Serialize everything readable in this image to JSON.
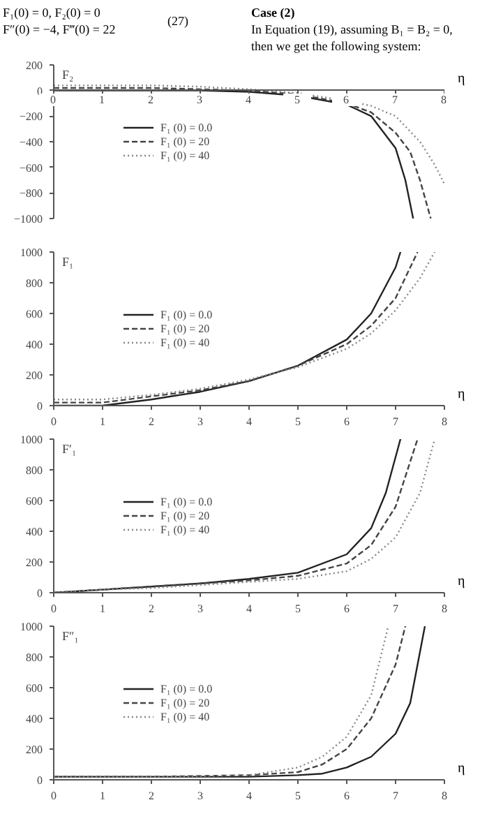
{
  "chart_data": [
    {
      "type": "line",
      "ylabel": "F₂",
      "xlabel": "η",
      "annotations": [
        "F₁(0) = 0, F₂(0) = 0",
        "F″(0) = −4, F‴(0) = 22",
        "(27)",
        "Case (2)",
        "In Equation (19), assuming B₁ = B₂ = 0, then we get the following system:"
      ],
      "xlim": [
        0,
        8
      ],
      "xticks": [
        0,
        1,
        2,
        3,
        4,
        5,
        6,
        7,
        8
      ],
      "ylim": [
        -1000,
        200
      ],
      "yticks": [
        -1000,
        -800,
        -600,
        -400,
        -200,
        0,
        200
      ],
      "grid": false,
      "legend": "center left",
      "series": [
        {
          "name": "F₁ (0) = 0.0",
          "color": "#222222",
          "line_style": "solid",
          "x": [
            0,
            1,
            2,
            3,
            4,
            5,
            6,
            6.5,
            7,
            7.2,
            7.36
          ],
          "values": [
            0,
            0,
            0,
            0,
            -10,
            -40,
            -110,
            -200,
            -450,
            -700,
            -1000
          ]
        },
        {
          "name": "F₁ (0) = 20",
          "color": "#444444",
          "line_style": "dashed",
          "x": [
            0,
            1,
            2,
            3,
            4,
            5,
            6,
            6.5,
            7,
            7.3,
            7.5,
            7.72
          ],
          "values": [
            20,
            20,
            20,
            10,
            0,
            -30,
            -100,
            -170,
            -330,
            -480,
            -700,
            -1000
          ]
        },
        {
          "name": "F₁ (0) = 40",
          "color": "#888888",
          "line_style": "dotted",
          "x": [
            0,
            1,
            2,
            3,
            4,
            5,
            6,
            6.5,
            7,
            7.5,
            7.8,
            8
          ],
          "values": [
            40,
            40,
            40,
            30,
            10,
            -20,
            -80,
            -120,
            -200,
            -400,
            -580,
            -730
          ]
        }
      ]
    },
    {
      "type": "line",
      "ylabel": "F₁",
      "xlabel": "η",
      "xlim": [
        0,
        8
      ],
      "xticks": [
        0,
        1,
        2,
        3,
        4,
        5,
        6,
        7,
        8
      ],
      "ylim": [
        0,
        1000
      ],
      "yticks": [
        0,
        200,
        400,
        600,
        800,
        1000
      ],
      "grid": false,
      "legend": "center left",
      "series": [
        {
          "name": "F₁ (0) = 0.0",
          "color": "#222222",
          "line_style": "solid",
          "x": [
            0,
            1,
            2,
            3,
            4,
            5,
            6,
            6.5,
            7,
            7.1
          ],
          "values": [
            0,
            0,
            40,
            90,
            160,
            260,
            430,
            600,
            900,
            1000
          ]
        },
        {
          "name": "F₁ (0) = 20",
          "color": "#444444",
          "line_style": "dashed",
          "x": [
            0,
            1,
            2,
            3,
            4,
            5,
            6,
            6.5,
            7,
            7.45
          ],
          "values": [
            20,
            20,
            60,
            100,
            160,
            260,
            400,
            520,
            700,
            1000
          ]
        },
        {
          "name": "F₁ (0) = 40",
          "color": "#888888",
          "line_style": "dotted",
          "x": [
            0,
            1,
            2,
            3,
            4,
            5,
            6,
            6.5,
            7,
            7.5,
            7.8
          ],
          "values": [
            40,
            40,
            70,
            110,
            170,
            250,
            370,
            470,
            620,
            830,
            1000
          ]
        }
      ]
    },
    {
      "type": "line",
      "ylabel": "F′₁",
      "xlabel": "η",
      "xlim": [
        0,
        8
      ],
      "xticks": [
        0,
        1,
        2,
        3,
        4,
        5,
        6,
        7,
        8
      ],
      "ylim": [
        0,
        1000
      ],
      "yticks": [
        0,
        200,
        400,
        600,
        800,
        1000
      ],
      "grid": false,
      "legend": "center left",
      "series": [
        {
          "name": "F₁ (0) = 0.0",
          "color": "#222222",
          "line_style": "solid",
          "x": [
            0,
            1,
            2,
            3,
            4,
            5,
            6,
            6.5,
            6.8,
            7.1
          ],
          "values": [
            0,
            20,
            40,
            60,
            90,
            130,
            250,
            420,
            650,
            1000
          ]
        },
        {
          "name": "F₁ (0) = 20",
          "color": "#444444",
          "line_style": "dashed",
          "x": [
            0,
            1,
            2,
            3,
            4,
            5,
            6,
            6.5,
            7,
            7.45
          ],
          "values": [
            0,
            20,
            40,
            60,
            80,
            110,
            190,
            310,
            560,
            1000
          ]
        },
        {
          "name": "F₁ (0) = 40",
          "color": "#888888",
          "line_style": "dotted",
          "x": [
            0,
            1,
            2,
            3,
            4,
            5,
            6,
            6.5,
            7,
            7.5,
            7.8
          ],
          "values": [
            0,
            20,
            30,
            50,
            70,
            90,
            140,
            220,
            360,
            650,
            1000
          ]
        }
      ]
    },
    {
      "type": "line",
      "ylabel": "F″₁",
      "xlabel": "η",
      "xlim": [
        0,
        8
      ],
      "xticks": [
        0,
        1,
        2,
        3,
        4,
        5,
        6,
        7,
        8
      ],
      "ylim": [
        0,
        1000
      ],
      "yticks": [
        0,
        200,
        400,
        600,
        800,
        1000
      ],
      "grid": false,
      "legend": "center left",
      "series": [
        {
          "name": "F₁ (0) = 0.0",
          "color": "#222222",
          "line_style": "solid",
          "x": [
            0,
            2,
            4,
            5,
            5.5,
            6,
            6.5,
            7,
            7.3,
            7.6
          ],
          "values": [
            20,
            20,
            20,
            30,
            40,
            80,
            150,
            300,
            500,
            1000
          ]
        },
        {
          "name": "F₁ (0) = 20",
          "color": "#444444",
          "line_style": "dashed",
          "x": [
            0,
            2,
            4,
            5,
            5.5,
            6,
            6.5,
            7,
            7.2
          ],
          "values": [
            20,
            20,
            30,
            50,
            100,
            200,
            400,
            750,
            1000
          ]
        },
        {
          "name": "F₁ (0) = 40",
          "color": "#888888",
          "line_style": "dotted",
          "x": [
            0,
            2,
            4,
            5,
            5.5,
            6,
            6.5,
            6.85
          ],
          "values": [
            20,
            20,
            30,
            80,
            150,
            280,
            550,
            1000
          ]
        }
      ]
    }
  ]
}
